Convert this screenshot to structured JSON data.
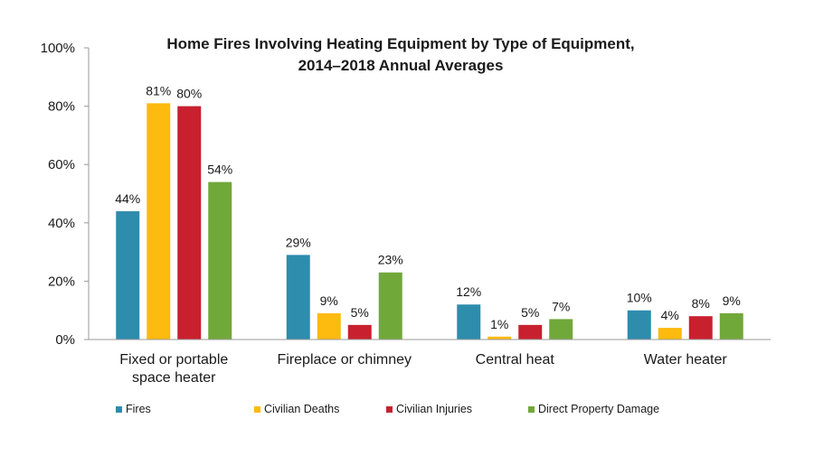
{
  "chart_data": {
    "type": "bar",
    "title_lines": [
      "Home Fires Involving Heating Equipment by Type of Equipment,",
      "2014–2018 Annual Averages"
    ],
    "categories": [
      [
        "Fixed or portable",
        "space heater"
      ],
      [
        "Fireplace or chimney"
      ],
      [
        "Central heat"
      ],
      [
        "Water heater"
      ]
    ],
    "series": [
      {
        "name": "Fires",
        "color": "#2E8CAD",
        "values": [
          44,
          29,
          12,
          10
        ]
      },
      {
        "name": "Civilian Deaths",
        "color": "#FDBA0F",
        "values": [
          81,
          9,
          1,
          4
        ]
      },
      {
        "name": "Civilian Injuries",
        "color": "#C8202F",
        "values": [
          80,
          5,
          5,
          8
        ]
      },
      {
        "name": "Direct Property Damage",
        "color": "#71A83A",
        "values": [
          54,
          23,
          7,
          9
        ]
      }
    ],
    "value_labels": [
      [
        "44%",
        "29%",
        "12%",
        "10%"
      ],
      [
        "81%",
        "9%",
        "1%",
        "4%"
      ],
      [
        "80%",
        "5%",
        "5%",
        "8%"
      ],
      [
        "54%",
        "23%",
        "7%",
        "9%"
      ]
    ],
    "yticks": [
      {
        "value": 0,
        "label": "0%"
      },
      {
        "value": 20,
        "label": "20%"
      },
      {
        "value": 40,
        "label": "40%"
      },
      {
        "value": 60,
        "label": "60%"
      },
      {
        "value": 80,
        "label": "80%"
      },
      {
        "value": 100,
        "label": "100%"
      }
    ],
    "ylim": [
      0,
      100
    ],
    "grid": false,
    "legend_position": "bottom"
  }
}
